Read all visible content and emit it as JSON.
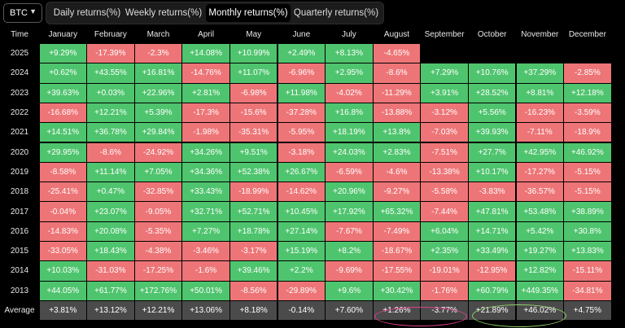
{
  "asset": "BTC",
  "tabs": [
    {
      "label": "Daily returns(%)",
      "active": false
    },
    {
      "label": "Weekly returns(%)",
      "active": false
    },
    {
      "label": "Monthly returns(%)",
      "active": true
    },
    {
      "label": "Quarterly returns(%)",
      "active": false
    }
  ],
  "table": {
    "time_header": "Time",
    "months": [
      "January",
      "February",
      "March",
      "April",
      "May",
      "June",
      "July",
      "August",
      "September",
      "October",
      "November",
      "December"
    ],
    "rows": [
      {
        "year": "2025",
        "values": [
          "+9.29%",
          "-17.39%",
          "-2.3%",
          "+14.08%",
          "+10.99%",
          "+2.49%",
          "+8.13%",
          "-4.65%",
          "",
          "",
          "",
          ""
        ]
      },
      {
        "year": "2024",
        "values": [
          "+0.62%",
          "+43.55%",
          "+16.81%",
          "-14.76%",
          "+11.07%",
          "-6.96%",
          "+2.95%",
          "-8.6%",
          "+7.29%",
          "+10.76%",
          "+37.29%",
          "-2.85%"
        ]
      },
      {
        "year": "2023",
        "values": [
          "+39.63%",
          "+0.03%",
          "+22.96%",
          "+2.81%",
          "-6.98%",
          "+11.98%",
          "-4.02%",
          "-11.29%",
          "+3.91%",
          "+28.52%",
          "+8.81%",
          "+12.18%"
        ]
      },
      {
        "year": "2022",
        "values": [
          "-16.68%",
          "+12.21%",
          "+5.39%",
          "-17.3%",
          "-15.6%",
          "-37.28%",
          "+16.8%",
          "-13.88%",
          "-3.12%",
          "+5.56%",
          "-16.23%",
          "-3.59%"
        ]
      },
      {
        "year": "2021",
        "values": [
          "+14.51%",
          "+36.78%",
          "+29.84%",
          "-1.98%",
          "-35.31%",
          "-5.95%",
          "+18.19%",
          "+13.8%",
          "-7.03%",
          "+39.93%",
          "-7.11%",
          "-18.9%"
        ]
      },
      {
        "year": "2020",
        "values": [
          "+29.95%",
          "-8.6%",
          "-24.92%",
          "+34.26%",
          "+9.51%",
          "-3.18%",
          "+24.03%",
          "+2.83%",
          "-7.51%",
          "+27.7%",
          "+42.95%",
          "+46.92%"
        ]
      },
      {
        "year": "2019",
        "values": [
          "-8.58%",
          "+11.14%",
          "+7.05%",
          "+34.36%",
          "+52.38%",
          "+26.67%",
          "-6.59%",
          "-4.6%",
          "-13.38%",
          "+10.17%",
          "-17.27%",
          "-5.15%"
        ]
      },
      {
        "year": "2018",
        "values": [
          "-25.41%",
          "+0.47%",
          "-32.85%",
          "+33.43%",
          "-18.99%",
          "-14.62%",
          "+20.96%",
          "-9.27%",
          "-5.58%",
          "-3.83%",
          "-36.57%",
          "-5.15%"
        ]
      },
      {
        "year": "2017",
        "values": [
          "-0.04%",
          "+23.07%",
          "-9.05%",
          "+32.71%",
          "+52.71%",
          "+10.45%",
          "+17.92%",
          "+65.32%",
          "-7.44%",
          "+47.81%",
          "+53.48%",
          "+38.89%"
        ]
      },
      {
        "year": "2016",
        "values": [
          "-14.83%",
          "+20.08%",
          "-5.35%",
          "+7.27%",
          "+18.78%",
          "+27.14%",
          "-7.67%",
          "-7.49%",
          "+6.04%",
          "+14.71%",
          "+5.42%",
          "+30.8%"
        ]
      },
      {
        "year": "2015",
        "values": [
          "-33.05%",
          "+18.43%",
          "-4.38%",
          "-3.46%",
          "-3.17%",
          "+15.19%",
          "+8.2%",
          "-18.67%",
          "+2.35%",
          "+33.49%",
          "+19.27%",
          "+13.83%"
        ]
      },
      {
        "year": "2014",
        "values": [
          "+10.03%",
          "-31.03%",
          "-17.25%",
          "-1.6%",
          "+39.46%",
          "+2.2%",
          "-9.69%",
          "-17.55%",
          "-19.01%",
          "-12.95%",
          "+12.82%",
          "-15.11%"
        ]
      },
      {
        "year": "2013",
        "values": [
          "+44.05%",
          "+61.77%",
          "+172.76%",
          "+50.01%",
          "-8.56%",
          "-29.89%",
          "+9.6%",
          "+30.42%",
          "-1.76%",
          "+60.79%",
          "+449.35%",
          "-34.81%"
        ]
      }
    ],
    "average_label": "Average",
    "average": [
      "+3.81%",
      "+13.12%",
      "+12.21%",
      "+13.06%",
      "+8.18%",
      "-0.14%",
      "+7.60%",
      "+1.26%",
      "-3.77%",
      "+21.89%",
      "+46.02%",
      "+4.75%"
    ]
  },
  "annotations": {
    "pink_circle_color": "#e0428c",
    "green_circle_color": "#8fd06a"
  },
  "colors": {
    "positive": "#4fc46e",
    "negative": "#ee7577",
    "average_bg": "#4b4b4b"
  }
}
